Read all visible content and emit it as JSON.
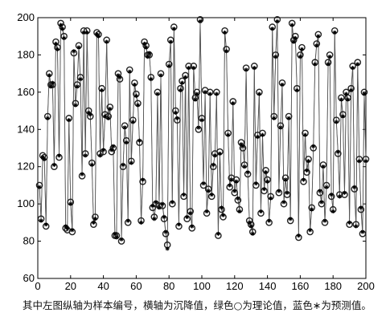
{
  "chart_data": {
    "type": "line",
    "caption": "其中左图纵轴为样本编号，横轴为沉降值，绿色○为理论值，蓝色∗为预测值。",
    "x": [
      1,
      2,
      3,
      4,
      5,
      6,
      7,
      8,
      9,
      10,
      11,
      12,
      13,
      14,
      15,
      16,
      17,
      18,
      19,
      20,
      21,
      22,
      23,
      24,
      25,
      26,
      27,
      28,
      29,
      30,
      31,
      32,
      33,
      34,
      35,
      36,
      37,
      38,
      39,
      40,
      41,
      42,
      43,
      44,
      45,
      46,
      47,
      48,
      49,
      50,
      51,
      52,
      53,
      54,
      55,
      56,
      57,
      58,
      59,
      60,
      61,
      62,
      63,
      64,
      65,
      66,
      67,
      68,
      69,
      70,
      71,
      72,
      73,
      74,
      75,
      76,
      77,
      78,
      79,
      80,
      81,
      82,
      83,
      84,
      85,
      86,
      87,
      88,
      89,
      90,
      91,
      92,
      93,
      94,
      95,
      96,
      97,
      98,
      99,
      100,
      101,
      102,
      103,
      104,
      105,
      106,
      107,
      108,
      109,
      110,
      111,
      112,
      113,
      114,
      115,
      116,
      117,
      118,
      119,
      120,
      121,
      122,
      123,
      124,
      125,
      126,
      127,
      128,
      129,
      130,
      131,
      132,
      133,
      134,
      135,
      136,
      137,
      138,
      139,
      140,
      141,
      142,
      143,
      144,
      145,
      146,
      147,
      148,
      149,
      150,
      151,
      152,
      153,
      154,
      155,
      156,
      157,
      158,
      159,
      160,
      161,
      162,
      163,
      164,
      165,
      166,
      167,
      168,
      169,
      170,
      171,
      172,
      173,
      174,
      175,
      176,
      177,
      178,
      179,
      180,
      181,
      182,
      183,
      184,
      185,
      186,
      187,
      188,
      189,
      190,
      191,
      192,
      193,
      194,
      195,
      196,
      197,
      198,
      199,
      200
    ],
    "series": [
      {
        "color": "#222222",
        "marker": "circle",
        "values": [
          110,
          92,
          126,
          125,
          88,
          147,
          170,
          164,
          164,
          120,
          187,
          184,
          125,
          197,
          195,
          190,
          87,
          86,
          146,
          101,
          85,
          181,
          154,
          164,
          185,
          168,
          115,
          193,
          127,
          193,
          150,
          147,
          122,
          89,
          93,
          192,
          191,
          127,
          162,
          128,
          148,
          188,
          147,
          152,
          128,
          130,
          83,
          83,
          170,
          167,
          80,
          120,
          142,
          134,
          90,
          172,
          123,
          145,
          165,
          159,
          154,
          133,
          91,
          112,
          187,
          185,
          180,
          180,
          168,
          98,
          93,
          100,
          160,
          99,
          170,
          99,
          92,
          84,
          78,
          175,
          188,
          100,
          195,
          150,
          145,
          88,
          162,
          166,
          104,
          169,
          92,
          174,
          96,
          87,
          174,
          157,
          160,
          140,
          199,
          146,
          110,
          161,
          95,
          108,
          160,
          104,
          120,
          127,
          160,
          83,
          128,
          97,
          93,
          193,
          183,
          138,
          109,
          114,
          155,
          106,
          113,
          102,
          97,
          133,
          130,
          121,
          173,
          116,
          91,
          89,
          85,
          174,
          110,
          137,
          160,
          95,
          138,
          107,
          118,
          113,
          90,
          104,
          195,
          147,
          180,
          199,
          106,
          142,
          165,
          100,
          114,
          105,
          147,
          91,
          197,
          188,
          190,
          162,
          82,
          180,
          184,
          112,
          138,
          117,
          124,
          85,
          98,
          130,
          176,
          186,
          191,
          106,
          100,
          121,
          90,
          110,
          176,
          180,
          104,
          97,
          193,
          145,
          127,
          105,
          157,
          148,
          105,
          160,
          157,
          89,
          162,
          174,
          108,
          89,
          176,
          124,
          97,
          84,
          160,
          124
        ]
      },
      {
        "color": "#000000",
        "marker": "asterisk",
        "values": [
          109,
          91,
          125,
          124,
          89,
          146,
          169,
          163,
          165,
          121,
          186,
          183,
          126,
          196,
          194,
          189,
          88,
          87,
          145,
          100,
          86,
          182,
          153,
          163,
          184,
          167,
          116,
          192,
          126,
          192,
          149,
          148,
          121,
          90,
          92,
          191,
          190,
          126,
          161,
          129,
          147,
          187,
          146,
          151,
          129,
          131,
          84,
          82,
          169,
          168,
          81,
          121,
          141,
          133,
          91,
          171,
          122,
          144,
          164,
          158,
          153,
          134,
          90,
          113,
          186,
          184,
          179,
          181,
          167,
          99,
          92,
          101,
          159,
          98,
          169,
          100,
          93,
          85,
          76,
          174,
          187,
          101,
          194,
          149,
          146,
          89,
          161,
          165,
          105,
          168,
          93,
          173,
          95,
          88,
          173,
          156,
          159,
          141,
          198,
          145,
          111,
          160,
          96,
          107,
          159,
          105,
          121,
          126,
          159,
          84,
          127,
          98,
          94,
          192,
          182,
          137,
          110,
          113,
          154,
          107,
          112,
          103,
          96,
          132,
          131,
          120,
          172,
          117,
          90,
          88,
          84,
          173,
          111,
          136,
          159,
          96,
          137,
          108,
          117,
          112,
          91,
          103,
          194,
          146,
          179,
          198,
          107,
          141,
          164,
          101,
          113,
          106,
          146,
          92,
          196,
          187,
          189,
          161,
          83,
          179,
          183,
          113,
          137,
          118,
          123,
          86,
          97,
          131,
          175,
          185,
          190,
          107,
          101,
          120,
          91,
          109,
          175,
          179,
          105,
          96,
          192,
          144,
          128,
          104,
          156,
          147,
          106,
          159,
          156,
          90,
          161,
          173,
          109,
          88,
          175,
          123,
          98,
          85,
          159,
          123
        ]
      }
    ],
    "xlim": [
      0,
      200
    ],
    "xticks": [
      0,
      20,
      40,
      60,
      80,
      100,
      120,
      140,
      160,
      180,
      200
    ],
    "ylim": [
      60,
      200
    ],
    "yticks": [
      60,
      80,
      100,
      120,
      140,
      160,
      180,
      200
    ]
  }
}
